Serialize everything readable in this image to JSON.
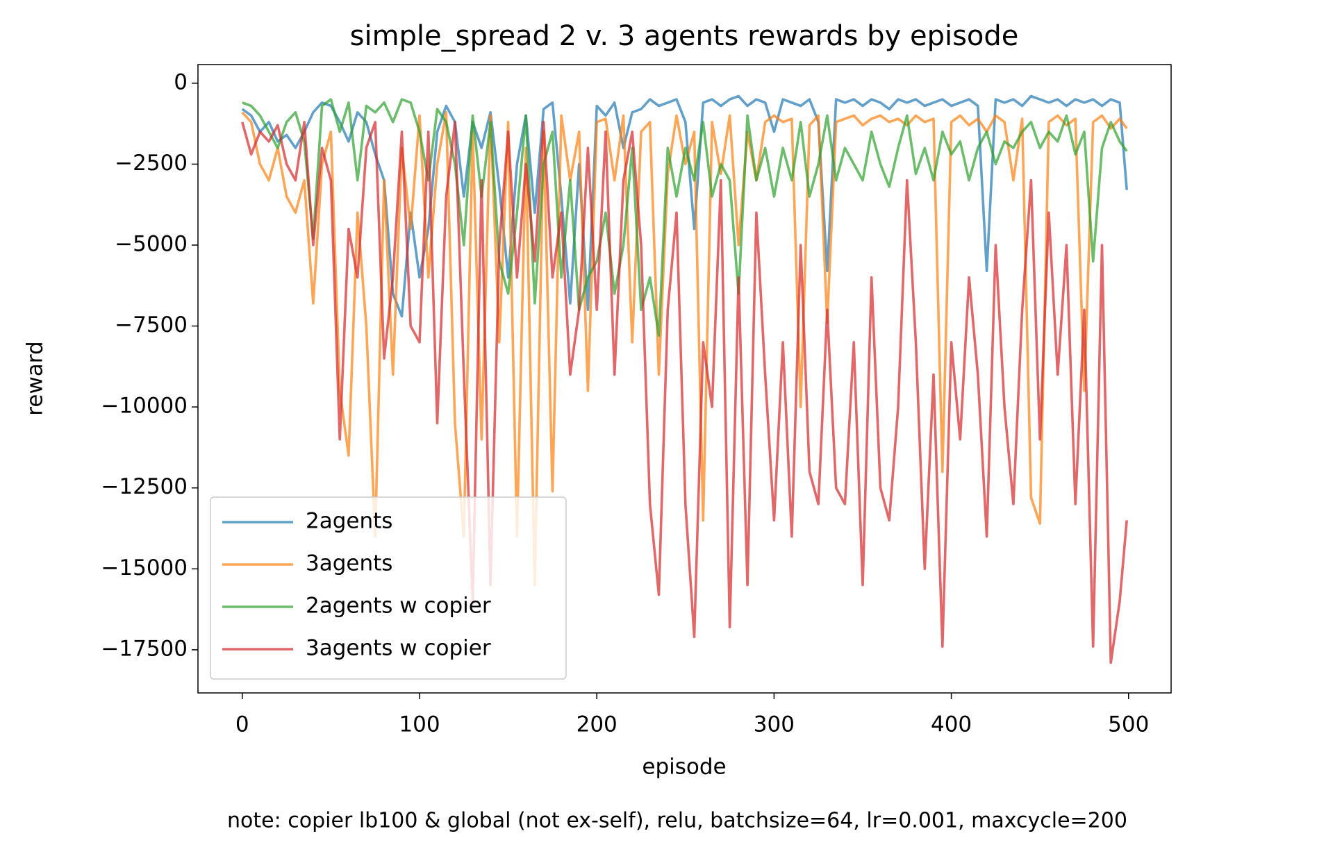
{
  "chart_data": {
    "type": "line",
    "title": "simple_spread 2 v. 3 agents rewards by episode",
    "xlabel": "episode",
    "ylabel": "reward",
    "note": "note: copier lb100 & global (not ex-self), relu, batchsize=64, lr=0.001, maxcycle=200",
    "xlim": [
      -25,
      524
    ],
    "ylim": [
      -18832,
      575
    ],
    "xticks": [
      0,
      100,
      200,
      300,
      400,
      500
    ],
    "yticks": [
      0,
      {
        "value": -2500,
        "label": "−2500"
      },
      {
        "value": -5000,
        "label": "−5000"
      },
      {
        "value": -7500,
        "label": "−7500"
      },
      {
        "value": -10000,
        "label": "−10000"
      },
      {
        "value": -12500,
        "label": "−12500"
      },
      {
        "value": -15000,
        "label": "−15000"
      },
      {
        "value": -17500,
        "label": "−17500"
      }
    ],
    "grid": false,
    "legend": "lower left",
    "line_alpha": 0.7,
    "x": [
      0,
      5,
      10,
      15,
      20,
      25,
      30,
      35,
      40,
      45,
      50,
      55,
      60,
      65,
      70,
      75,
      80,
      85,
      90,
      95,
      100,
      105,
      110,
      115,
      120,
      125,
      130,
      135,
      140,
      145,
      150,
      155,
      160,
      165,
      170,
      175,
      180,
      185,
      190,
      195,
      200,
      205,
      210,
      215,
      220,
      225,
      230,
      235,
      240,
      245,
      250,
      255,
      260,
      265,
      270,
      275,
      280,
      285,
      290,
      295,
      300,
      305,
      310,
      315,
      320,
      325,
      330,
      335,
      340,
      345,
      350,
      355,
      360,
      365,
      370,
      375,
      380,
      385,
      390,
      395,
      400,
      405,
      410,
      415,
      420,
      425,
      430,
      435,
      440,
      445,
      450,
      455,
      460,
      465,
      470,
      475,
      480,
      485,
      490,
      495,
      499
    ],
    "series": [
      {
        "name": "2agents",
        "color": "#1f77b4",
        "values": [
          -800,
          -1000,
          -1500,
          -1200,
          -1800,
          -1600,
          -2000,
          -1500,
          -900,
          -600,
          -700,
          -1200,
          -1800,
          -900,
          -1200,
          -2200,
          -3000,
          -6500,
          -7200,
          -4000,
          -6000,
          -4500,
          -1500,
          -700,
          -1200,
          -3500,
          -1200,
          -2000,
          -900,
          -3200,
          -6000,
          -2500,
          -1000,
          -4000,
          -800,
          -600,
          -3500,
          -6800,
          -2500,
          -7000,
          -700,
          -1000,
          -600,
          -2000,
          -900,
          -800,
          -500,
          -700,
          -600,
          -500,
          -1200,
          -4500,
          -600,
          -500,
          -700,
          -500,
          -400,
          -700,
          -500,
          -600,
          -1500,
          -500,
          -600,
          -700,
          -500,
          -1200,
          -5800,
          -500,
          -600,
          -500,
          -700,
          -500,
          -600,
          -800,
          -500,
          -600,
          -500,
          -700,
          -600,
          -500,
          -700,
          -600,
          -500,
          -700,
          -5800,
          -500,
          -600,
          -500,
          -700,
          -400,
          -500,
          -600,
          -500,
          -700,
          -500,
          -600,
          -500,
          -700,
          -500,
          -600,
          -3300
        ]
      },
      {
        "name": "3agents",
        "color": "#ff7f0e",
        "values": [
          -900,
          -1200,
          -2500,
          -3000,
          -2000,
          -3500,
          -4000,
          -3000,
          -6800,
          -2500,
          -1500,
          -9500,
          -11500,
          -4000,
          -7500,
          -14000,
          -3000,
          -9000,
          -2000,
          -4500,
          -1000,
          -6000,
          -2500,
          -900,
          -10500,
          -14000,
          -1500,
          -11000,
          -1000,
          -8000,
          -1200,
          -14000,
          -2000,
          -15500,
          -1500,
          -12600,
          -1000,
          -3000,
          -1500,
          -9500,
          -1200,
          -1100,
          -3000,
          -1000,
          -8000,
          -1500,
          -1200,
          -9000,
          -2800,
          -1000,
          -2500,
          -1500,
          -13500,
          -1200,
          -2800,
          -1000,
          -5000,
          -1500,
          -3000,
          -1200,
          -1000,
          -1200,
          -1100,
          -10000,
          -1300,
          -1000,
          -7400,
          -1200,
          -1100,
          -1000,
          -1300,
          -1100,
          -1000,
          -1200,
          -1100,
          -1300,
          -1000,
          -1200,
          -1100,
          -12000,
          -1200,
          -1000,
          -1300,
          -1100,
          -1500,
          -1000,
          -1200,
          -3000,
          -1100,
          -12800,
          -13600,
          -1200,
          -1000,
          -1300,
          -1100,
          -9500,
          -1200,
          -1000,
          -1400,
          -1100,
          -1400
        ]
      },
      {
        "name": "2agents w copier",
        "color": "#2ca02c",
        "values": [
          -600,
          -700,
          -1000,
          -1500,
          -2000,
          -1200,
          -900,
          -1800,
          -4800,
          -700,
          -500,
          -1500,
          -600,
          -3000,
          -700,
          -900,
          -600,
          -1200,
          -500,
          -600,
          -1500,
          -3000,
          -800,
          -1200,
          -2500,
          -5000,
          -1000,
          -3500,
          -1200,
          -5500,
          -6500,
          -4000,
          -1000,
          -6800,
          -2500,
          -1500,
          -6000,
          -3000,
          -7000,
          -6000,
          -5500,
          -4000,
          -6500,
          -5000,
          -2000,
          -7000,
          -6000,
          -7800,
          -2000,
          -3500,
          -2000,
          -3000,
          -1200,
          -3500,
          -2500,
          -3000,
          -6500,
          -1000,
          -3000,
          -2000,
          -3500,
          -2000,
          -3000,
          -1200,
          -3500,
          -2500,
          -1000,
          -3000,
          -2000,
          -2500,
          -3000,
          -1500,
          -2500,
          -3200,
          -2000,
          -1000,
          -2800,
          -2000,
          -3000,
          -1500,
          -2200,
          -1800,
          -3000,
          -2000,
          -1500,
          -2500,
          -1800,
          -2000,
          -1500,
          -1200,
          -2000,
          -1500,
          -1800,
          -1000,
          -2200,
          -1500,
          -5500,
          -2000,
          -1200,
          -1800,
          -2100
        ]
      },
      {
        "name": "3agents w copier",
        "color": "#d62728",
        "values": [
          -1200,
          -2200,
          -1500,
          -1800,
          -1300,
          -2500,
          -3000,
          -1200,
          -5000,
          -2000,
          -3000,
          -11000,
          -4500,
          -6000,
          -2000,
          -1200,
          -8500,
          -6000,
          -1500,
          -7500,
          -8000,
          -1500,
          -10500,
          -3500,
          -1200,
          -9000,
          -16000,
          -3000,
          -15500,
          -5000,
          -1500,
          -6000,
          -2500,
          -5500,
          -1200,
          -6000,
          -4000,
          -9000,
          -7000,
          -2000,
          -7000,
          -1500,
          -9000,
          -3000,
          -1500,
          -5000,
          -13000,
          -15800,
          -7000,
          -4000,
          -13000,
          -17100,
          -8000,
          -10000,
          -3000,
          -16800,
          -6000,
          -15500,
          -4000,
          -9000,
          -13500,
          -8000,
          -14000,
          -5000,
          -12000,
          -13000,
          -7000,
          -12500,
          -13000,
          -8000,
          -15500,
          -6000,
          -12500,
          -13500,
          -10000,
          -3000,
          -8000,
          -15000,
          -9000,
          -17400,
          -8000,
          -11000,
          -6000,
          -9000,
          -14000,
          -5000,
          -10000,
          -13000,
          -7000,
          -3000,
          -11000,
          -4000,
          -9000,
          -5000,
          -13000,
          -7000,
          -17400,
          -5000,
          -17900,
          -16000,
          -13500
        ]
      }
    ]
  }
}
